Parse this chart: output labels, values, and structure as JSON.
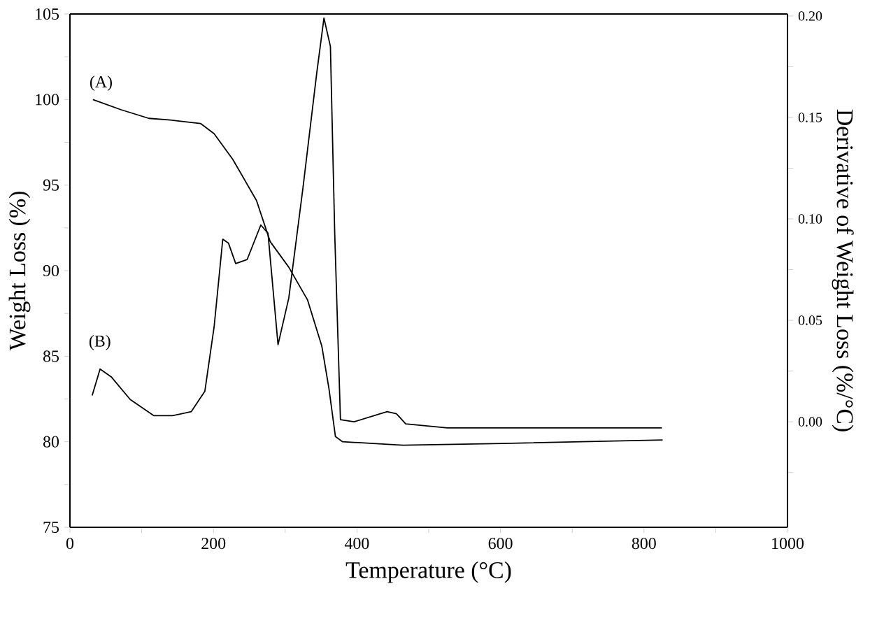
{
  "chart_data": {
    "type": "line",
    "xlabel": "Temperature (°C)",
    "ylabel": "Weight Loss (%)",
    "y2label": "Derivative of Weight Loss (%/°C)",
    "xlim": [
      0,
      1000
    ],
    "xticks": [
      0,
      {
        "value": 100,
        "label": null
      },
      200,
      {
        "value": 300,
        "label": null
      },
      400,
      {
        "value": 500,
        "label": null
      },
      600,
      {
        "value": 700,
        "label": null
      },
      800,
      {
        "value": 900,
        "label": null
      },
      1000
    ],
    "ylim": [
      75,
      105
    ],
    "yticks": [
      75,
      {
        "value": 77.5,
        "label": null
      },
      80,
      {
        "value": 82.5,
        "label": null
      },
      85,
      {
        "value": 87.5,
        "label": null
      },
      90,
      {
        "value": 92.5,
        "label": null
      },
      95,
      {
        "value": 97.5,
        "label": null
      },
      100,
      {
        "value": 102.5,
        "label": null
      },
      105
    ],
    "y2lim": [
      -0.052,
      0.201
    ],
    "y2ticks": [
      {
        "value": -0.025,
        "label": null
      },
      {
        "value": 0,
        "label": "0.00"
      },
      {
        "value": 0.025,
        "label": null
      },
      {
        "value": 0.05,
        "label": "0.05"
      },
      {
        "value": 0.075,
        "label": null
      },
      {
        "value": 0.1,
        "label": "0.10"
      },
      {
        "value": 0.125,
        "label": null
      },
      {
        "value": 0.15,
        "label": "0.15"
      },
      {
        "value": 0.175,
        "label": null
      },
      {
        "value": 0.2,
        "label": "0.20"
      }
    ],
    "grid": false,
    "marker": "none",
    "line_style": "solid",
    "series": [
      {
        "color": "#000000",
        "x": [
          32,
          71.5,
          110,
          140,
          182,
          201,
          227,
          260,
          279,
          305,
          331,
          351,
          361,
          370,
          380,
          464,
          604,
          826
        ],
        "values": [
          100.0,
          99.4,
          98.9,
          98.8,
          98.6,
          98.0,
          96.5,
          94.1,
          91.7,
          90.2,
          88.3,
          85.6,
          83.1,
          80.3,
          80.0,
          79.8,
          79.9,
          80.1
        ]
      },
      {
        "color": "#000000",
        "axis": "y2",
        "x": [
          31,
          42,
          58,
          84,
          117,
          143,
          169,
          188,
          201,
          213,
          221,
          231,
          247,
          266,
          276,
          290,
          305,
          325,
          344,
          354,
          363,
          369,
          377,
          396,
          442,
          455,
          468,
          526,
          825
        ],
        "values": [
          0.013,
          0.026,
          0.022,
          0.011,
          0.003,
          0.003,
          0.005,
          0.015,
          0.047,
          0.09,
          0.088,
          0.078,
          0.08,
          0.097,
          0.093,
          0.038,
          0.061,
          0.116,
          0.172,
          0.199,
          0.185,
          0.093,
          0.001,
          0.0,
          0.005,
          0.004,
          -0.001,
          -0.003,
          -0.003
        ]
      }
    ],
    "annotations": [
      "(A)",
      "(B)"
    ]
  }
}
